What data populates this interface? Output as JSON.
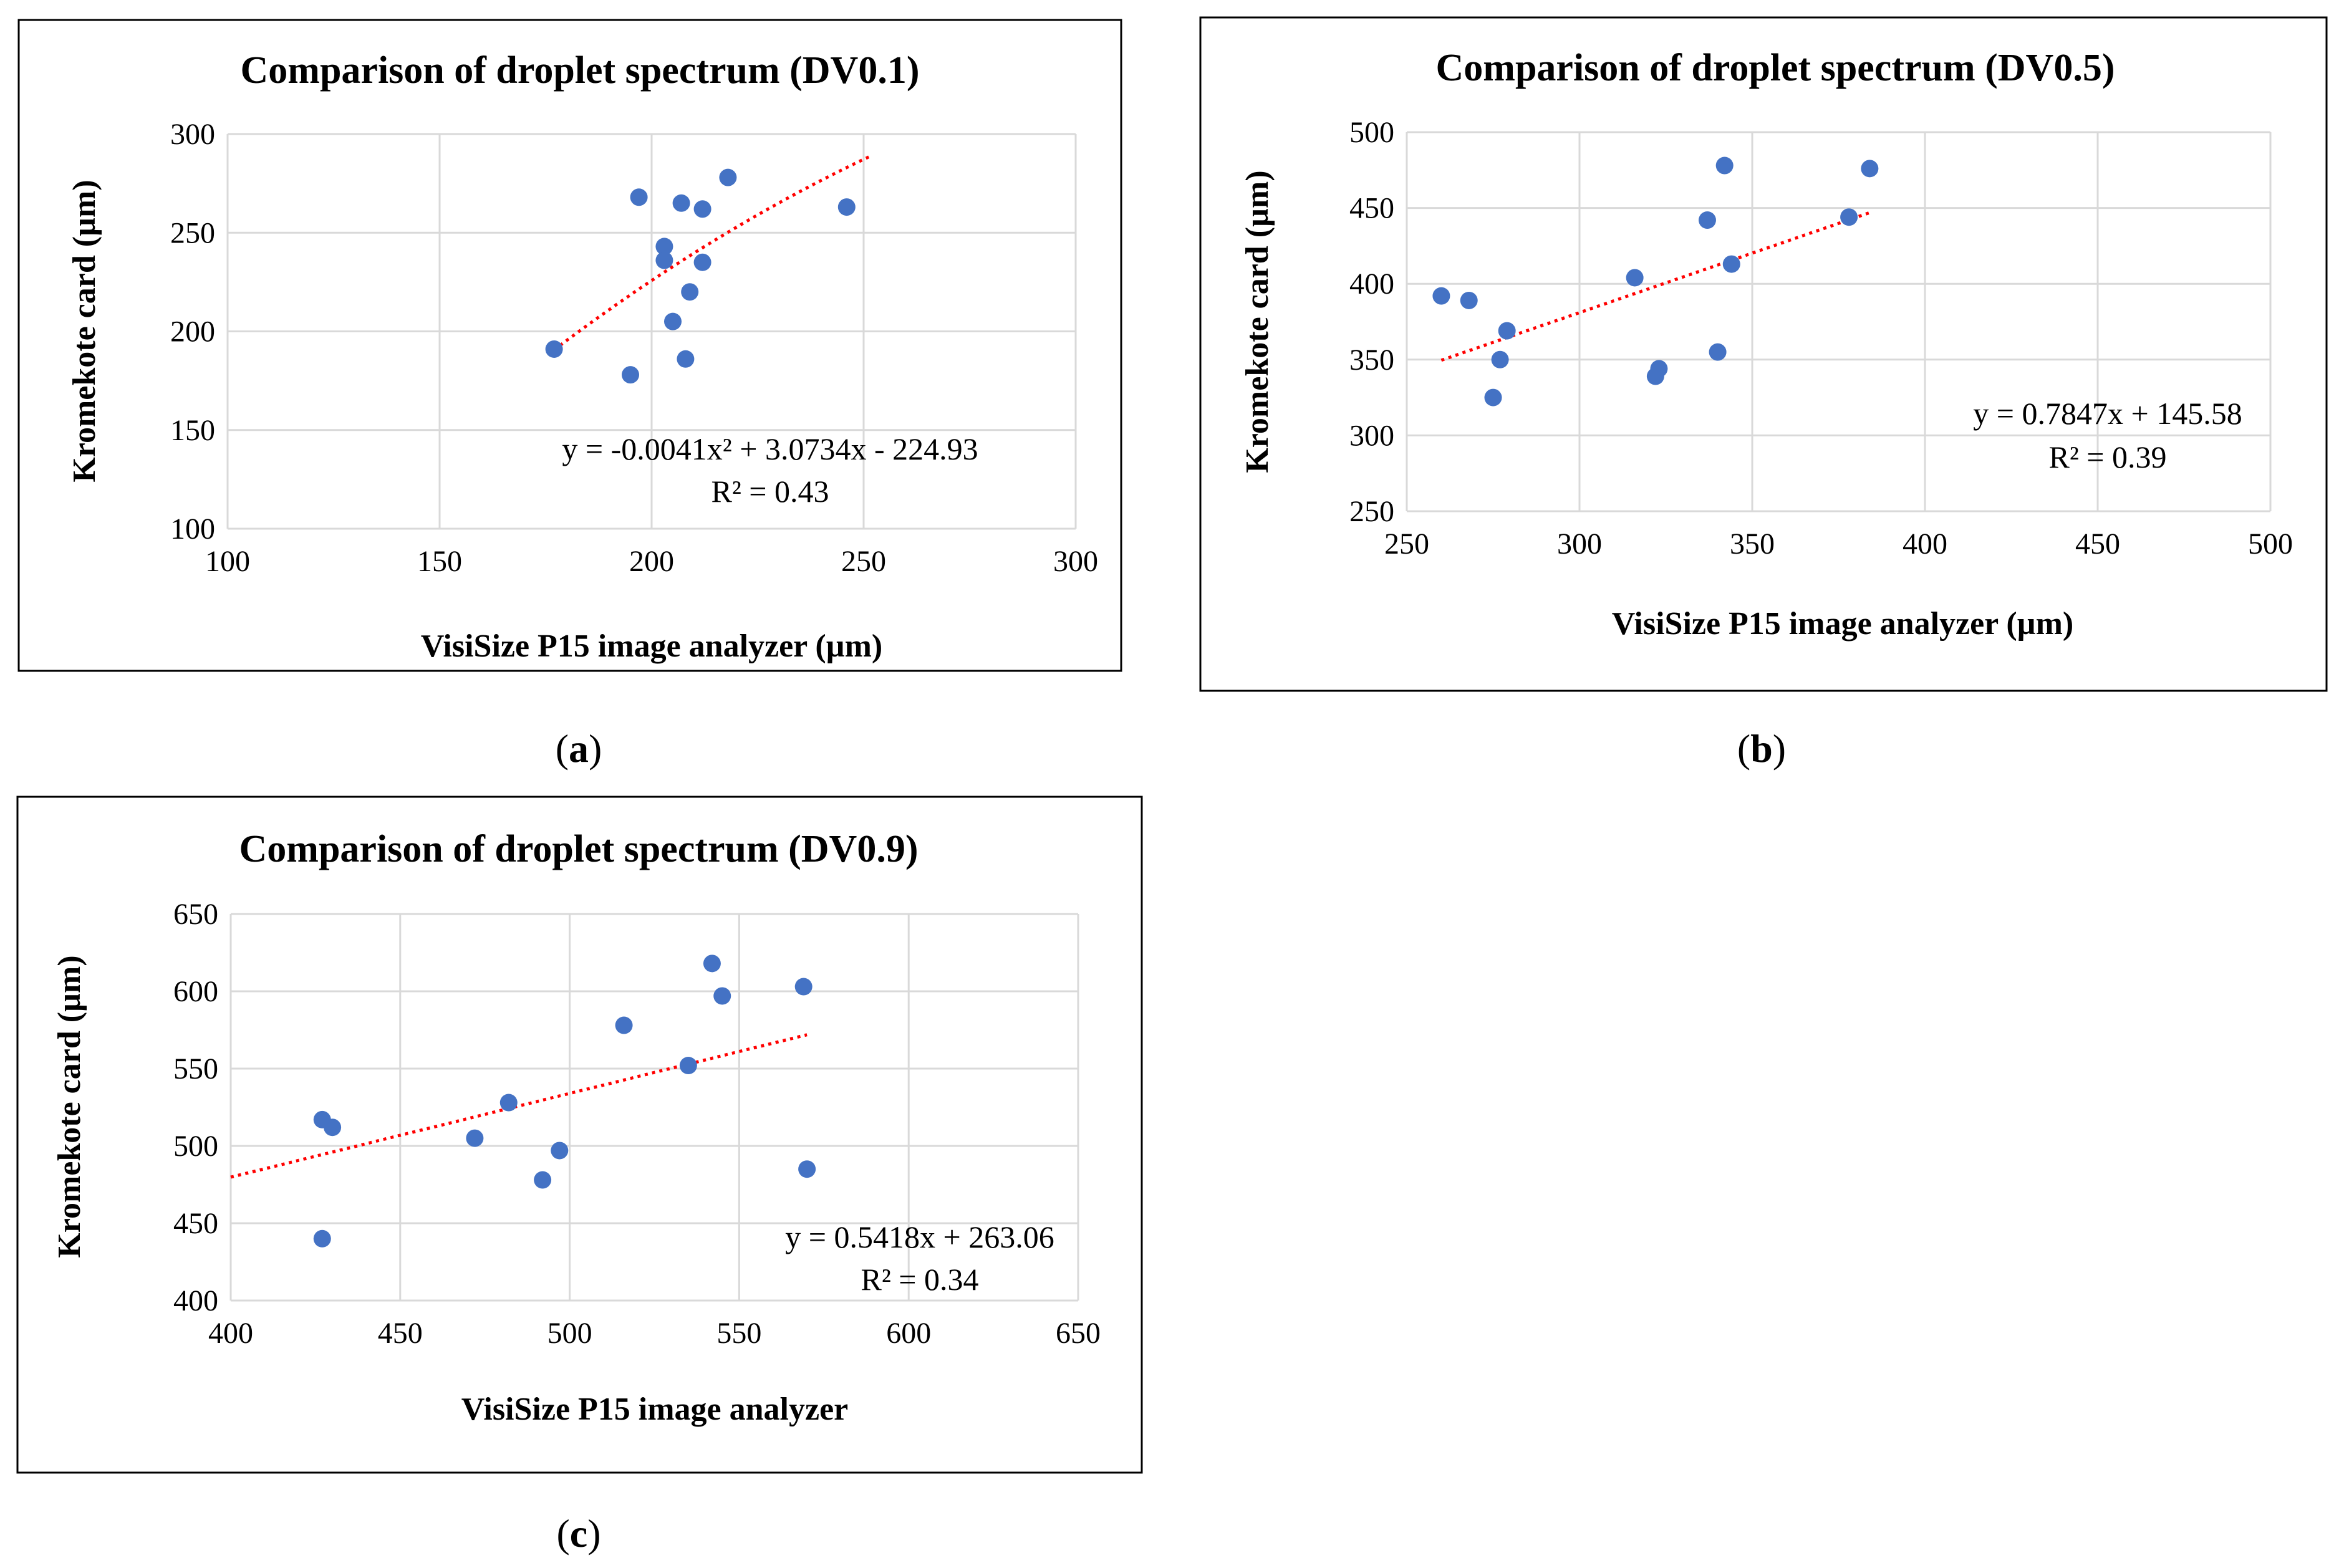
{
  "colors": {
    "marker": "#4472c4",
    "trendline": "#ff0000",
    "grid": "#d9d9d9",
    "frame": "#000000"
  },
  "chart_data": [
    {
      "type": "scatter",
      "title": "Comparison of droplet spectrum (DV0.1)",
      "xlabel": "VisiSize P15 image analyzer (µm)",
      "ylabel": "Kromekote card (µm)",
      "xlim": [
        100,
        300
      ],
      "ylim": [
        100,
        300
      ],
      "xticks": [
        100,
        150,
        200,
        250,
        300
      ],
      "yticks": [
        100,
        150,
        200,
        250,
        300
      ],
      "grid": true,
      "marker_color": "#4472c4",
      "points": [
        {
          "x": 177,
          "y": 191
        },
        {
          "x": 195,
          "y": 178
        },
        {
          "x": 197,
          "y": 268
        },
        {
          "x": 203,
          "y": 243
        },
        {
          "x": 203,
          "y": 236
        },
        {
          "x": 205,
          "y": 205
        },
        {
          "x": 207,
          "y": 265
        },
        {
          "x": 208,
          "y": 186
        },
        {
          "x": 209,
          "y": 220
        },
        {
          "x": 212,
          "y": 262
        },
        {
          "x": 212,
          "y": 235
        },
        {
          "x": 218,
          "y": 278
        },
        {
          "x": 246,
          "y": 263
        }
      ],
      "trendline": {
        "kind": "polynomial",
        "coefficients": [
          -0.0041,
          3.0734,
          -224.93
        ],
        "x_range": [
          177,
          252
        ],
        "equation": "y = -0.0041x² + 3.0734x - 224.93",
        "r2": "R² = 0.43"
      },
      "caption": {
        "open": "(",
        "letter": "a",
        "close": ")"
      }
    },
    {
      "type": "scatter",
      "title": "Comparison of droplet spectrum (DV0.5)",
      "xlabel": "VisiSize P15 image analyzer (µm)",
      "ylabel": "Kromekote card (µm)",
      "xlim": [
        250,
        500
      ],
      "ylim": [
        250,
        500
      ],
      "xticks": [
        250,
        300,
        350,
        400,
        450,
        500
      ],
      "yticks": [
        250,
        300,
        350,
        400,
        450,
        500
      ],
      "grid": true,
      "marker_color": "#4472c4",
      "points": [
        {
          "x": 260,
          "y": 392
        },
        {
          "x": 268,
          "y": 389
        },
        {
          "x": 275,
          "y": 325
        },
        {
          "x": 277,
          "y": 350
        },
        {
          "x": 279,
          "y": 369
        },
        {
          "x": 316,
          "y": 404
        },
        {
          "x": 322,
          "y": 339
        },
        {
          "x": 323,
          "y": 344
        },
        {
          "x": 337,
          "y": 442
        },
        {
          "x": 340,
          "y": 355
        },
        {
          "x": 342,
          "y": 478
        },
        {
          "x": 344,
          "y": 413
        },
        {
          "x": 378,
          "y": 444
        },
        {
          "x": 384,
          "y": 476
        }
      ],
      "trendline": {
        "kind": "linear",
        "coefficients": [
          0.7847,
          145.58
        ],
        "x_range": [
          260,
          384
        ],
        "equation": "y = 0.7847x + 145.58",
        "r2": "R² = 0.39"
      },
      "caption": {
        "open": "(",
        "letter": "b",
        "close": ")"
      }
    },
    {
      "type": "scatter",
      "title": "Comparison of droplet spectrum (DV0.9)",
      "xlabel": "VisiSize P15 image analyzer",
      "ylabel": "Kromekote card (µm)",
      "xlim": [
        400,
        650
      ],
      "ylim": [
        400,
        650
      ],
      "xticks": [
        400,
        450,
        500,
        550,
        600,
        650
      ],
      "yticks": [
        400,
        450,
        500,
        550,
        600,
        650
      ],
      "grid": true,
      "marker_color": "#4472c4",
      "points": [
        {
          "x": 427,
          "y": 517
        },
        {
          "x": 427,
          "y": 440
        },
        {
          "x": 430,
          "y": 512
        },
        {
          "x": 472,
          "y": 505
        },
        {
          "x": 482,
          "y": 528
        },
        {
          "x": 492,
          "y": 478
        },
        {
          "x": 497,
          "y": 497
        },
        {
          "x": 516,
          "y": 578
        },
        {
          "x": 535,
          "y": 552
        },
        {
          "x": 542,
          "y": 618
        },
        {
          "x": 545,
          "y": 597
        },
        {
          "x": 569,
          "y": 603
        },
        {
          "x": 570,
          "y": 485
        }
      ],
      "trendline": {
        "kind": "linear",
        "coefficients": [
          0.5418,
          263.06
        ],
        "x_range": [
          400,
          570
        ],
        "equation": "y = 0.5418x + 263.06",
        "r2": "R² = 0.34"
      },
      "caption": {
        "open": "(",
        "letter": "c",
        "close": ")"
      }
    }
  ]
}
